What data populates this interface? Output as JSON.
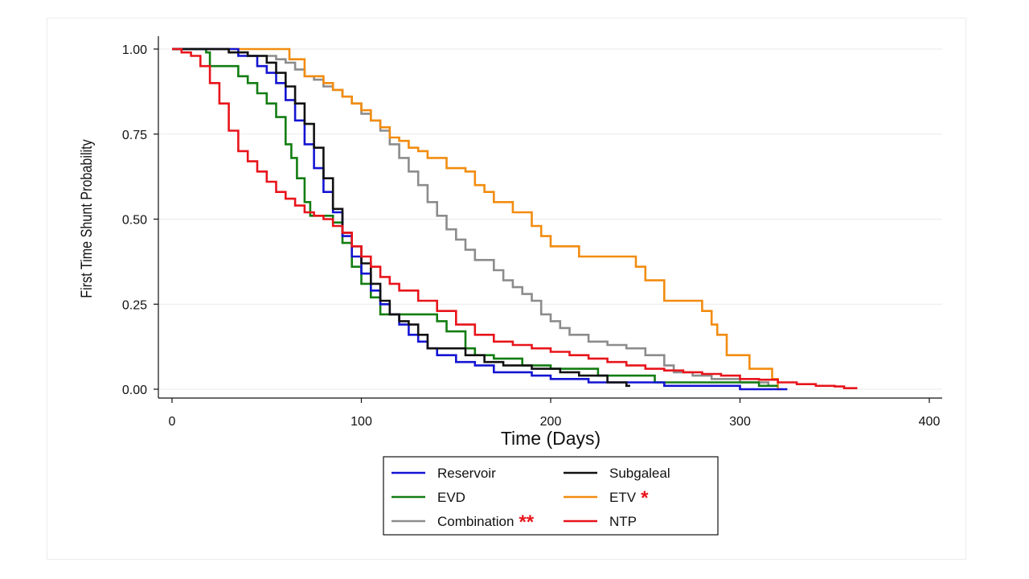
{
  "chart_data": {
    "type": "line",
    "step": true,
    "xlabel": "Time (Days)",
    "ylabel": "First Time Shunt Probability",
    "xlim": [
      0,
      400
    ],
    "ylim": [
      0,
      1
    ],
    "x_ticks": [
      0,
      100,
      200,
      300,
      400
    ],
    "x_tick_labels": [
      "0",
      "100",
      "200",
      "300",
      "400"
    ],
    "y_ticks": [
      0,
      0.25,
      0.5,
      0.75,
      1.0
    ],
    "y_tick_labels": [
      "0.00",
      "0.25",
      "0.50",
      "0.75",
      "1.00"
    ],
    "grid": "horizontal",
    "legend_placement": "bottom",
    "series": [
      {
        "name": "Reservoir",
        "color": "#1414d2",
        "x": [
          0,
          25,
          35,
          45,
          50,
          55,
          60,
          65,
          70,
          75,
          80,
          85,
          90,
          95,
          100,
          105,
          110,
          115,
          120,
          125,
          130,
          135,
          140,
          150,
          160,
          170,
          190,
          200,
          220,
          240,
          260,
          280,
          300,
          325
        ],
        "y": [
          1.0,
          1.0,
          0.98,
          0.95,
          0.93,
          0.9,
          0.85,
          0.79,
          0.72,
          0.65,
          0.58,
          0.52,
          0.45,
          0.39,
          0.34,
          0.29,
          0.25,
          0.22,
          0.19,
          0.16,
          0.14,
          0.12,
          0.1,
          0.08,
          0.07,
          0.05,
          0.04,
          0.03,
          0.02,
          0.02,
          0.01,
          0.01,
          0.0,
          0.0
        ]
      },
      {
        "name": "Subgaleal",
        "color": "#111111",
        "x": [
          0,
          30,
          40,
          50,
          55,
          60,
          65,
          70,
          75,
          80,
          85,
          90,
          95,
          100,
          105,
          110,
          115,
          120,
          125,
          130,
          135,
          145,
          155,
          165,
          175,
          190,
          205,
          215,
          230,
          240,
          242
        ],
        "y": [
          1.0,
          0.99,
          0.98,
          0.96,
          0.93,
          0.89,
          0.84,
          0.78,
          0.71,
          0.62,
          0.53,
          0.46,
          0.42,
          0.37,
          0.31,
          0.26,
          0.22,
          0.2,
          0.19,
          0.16,
          0.12,
          0.12,
          0.1,
          0.08,
          0.07,
          0.06,
          0.05,
          0.04,
          0.02,
          0.01,
          0.01
        ]
      },
      {
        "name": "EVD",
        "color": "#127d12",
        "x": [
          0,
          18,
          20,
          35,
          40,
          45,
          50,
          55,
          60,
          63,
          66,
          70,
          73,
          78,
          85,
          90,
          95,
          100,
          105,
          110,
          115,
          125,
          140,
          145,
          155,
          160,
          170,
          185,
          200,
          225,
          255,
          310,
          320
        ],
        "y": [
          1.0,
          0.99,
          0.95,
          0.92,
          0.9,
          0.87,
          0.84,
          0.8,
          0.72,
          0.68,
          0.62,
          0.55,
          0.51,
          0.51,
          0.49,
          0.43,
          0.36,
          0.31,
          0.27,
          0.22,
          0.22,
          0.22,
          0.2,
          0.17,
          0.12,
          0.1,
          0.09,
          0.07,
          0.06,
          0.04,
          0.02,
          0.01,
          0.01
        ]
      },
      {
        "name": "ETV",
        "color": "#f28c0f",
        "x": [
          0,
          58,
          62,
          70,
          80,
          85,
          90,
          95,
          100,
          105,
          110,
          115,
          120,
          125,
          130,
          135,
          145,
          155,
          160,
          165,
          170,
          180,
          190,
          195,
          200,
          215,
          235,
          245,
          250,
          260,
          280,
          285,
          288,
          293,
          298,
          305,
          317,
          320,
          322
        ],
        "y": [
          1.0,
          1.0,
          0.97,
          0.92,
          0.9,
          0.88,
          0.86,
          0.84,
          0.82,
          0.79,
          0.77,
          0.74,
          0.73,
          0.71,
          0.7,
          0.68,
          0.65,
          0.64,
          0.6,
          0.58,
          0.55,
          0.52,
          0.48,
          0.45,
          0.42,
          0.39,
          0.39,
          0.36,
          0.32,
          0.26,
          0.23,
          0.19,
          0.16,
          0.1,
          0.1,
          0.06,
          0.03,
          0.0,
          0.0
        ]
      },
      {
        "name": "Combination",
        "color": "#8c8c8c",
        "x": [
          0,
          30,
          40,
          55,
          60,
          65,
          70,
          75,
          80,
          85,
          90,
          95,
          100,
          105,
          110,
          115,
          120,
          125,
          130,
          135,
          140,
          145,
          150,
          155,
          160,
          170,
          175,
          180,
          185,
          190,
          195,
          200,
          205,
          210,
          220,
          230,
          240,
          250,
          260,
          265,
          275,
          285,
          300,
          315
        ],
        "y": [
          1.0,
          0.99,
          0.98,
          0.97,
          0.96,
          0.94,
          0.92,
          0.91,
          0.89,
          0.88,
          0.86,
          0.84,
          0.81,
          0.79,
          0.76,
          0.72,
          0.68,
          0.64,
          0.6,
          0.55,
          0.51,
          0.47,
          0.44,
          0.41,
          0.38,
          0.35,
          0.32,
          0.3,
          0.28,
          0.26,
          0.22,
          0.2,
          0.18,
          0.16,
          0.14,
          0.13,
          0.12,
          0.1,
          0.07,
          0.05,
          0.04,
          0.03,
          0.02,
          0.01
        ]
      },
      {
        "name": "NTP",
        "color": "#e8141b",
        "x": [
          0,
          5,
          10,
          15,
          20,
          25,
          30,
          35,
          40,
          45,
          50,
          55,
          60,
          65,
          70,
          75,
          80,
          85,
          90,
          95,
          100,
          105,
          110,
          115,
          120,
          130,
          140,
          150,
          160,
          170,
          180,
          190,
          200,
          210,
          220,
          230,
          240,
          250,
          260,
          270,
          280,
          290,
          300,
          310,
          320,
          330,
          340,
          350,
          355,
          362
        ],
        "y": [
          1.0,
          0.99,
          0.98,
          0.95,
          0.9,
          0.84,
          0.76,
          0.7,
          0.67,
          0.64,
          0.61,
          0.58,
          0.56,
          0.54,
          0.52,
          0.51,
          0.5,
          0.48,
          0.46,
          0.42,
          0.39,
          0.36,
          0.33,
          0.31,
          0.29,
          0.26,
          0.23,
          0.19,
          0.16,
          0.14,
          0.13,
          0.12,
          0.11,
          0.1,
          0.09,
          0.08,
          0.07,
          0.06,
          0.055,
          0.05,
          0.045,
          0.04,
          0.03,
          0.028,
          0.02,
          0.015,
          0.01,
          0.008,
          0.003,
          0.003
        ]
      }
    ],
    "legend": [
      {
        "label": "Reservoir",
        "series": "Reservoir",
        "mark": ""
      },
      {
        "label": "Subgaleal",
        "series": "Subgaleal",
        "mark": ""
      },
      {
        "label": "EVD",
        "series": "EVD",
        "mark": ""
      },
      {
        "label": "ETV",
        "series": "ETV",
        "mark": "*"
      },
      {
        "label": "Combination",
        "series": "Combination",
        "mark": "**"
      },
      {
        "label": "NTP",
        "series": "NTP",
        "mark": ""
      }
    ]
  }
}
